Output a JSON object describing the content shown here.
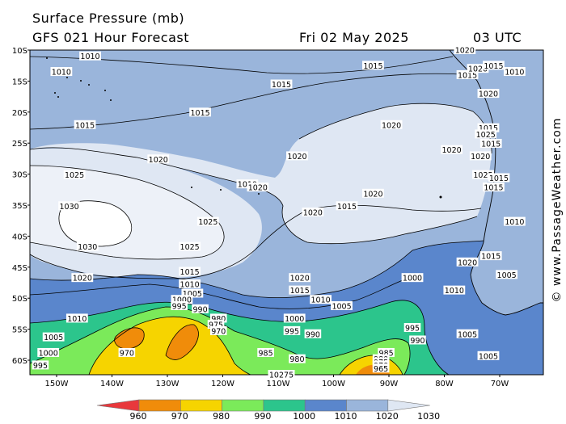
{
  "title_line1": "Surface Pressure (mb)",
  "title_line2": "GFS 021 Hour Forecast",
  "date": "Fri 02 May 2025",
  "time": "03 UTC",
  "credit": "© www.PassageWeather.com",
  "lat_labels": [
    "10S",
    "15S",
    "20S",
    "25S",
    "30S",
    "35S",
    "40S",
    "45S",
    "50S",
    "55S",
    "60S"
  ],
  "lon_labels": [
    "150W",
    "140W",
    "130W",
    "120W",
    "110W",
    "100W",
    "90W",
    "80W",
    "70W"
  ],
  "colorbar": {
    "ticks": [
      "960",
      "970",
      "980",
      "990",
      "1000",
      "1010",
      "1020",
      "1030"
    ],
    "colors": [
      "#e8383c",
      "#f08c0a",
      "#f6d400",
      "#7bea5a",
      "#2cc58c",
      "#5a86cc",
      "#9ab5db",
      "#dfe7f3"
    ]
  },
  "isobar_labels": [
    {
      "text": "1010",
      "lon": -147.0,
      "lat": -11.0
    },
    {
      "text": "1010",
      "lon": -152.5,
      "lat": -13.5
    },
    {
      "text": "1015",
      "lon": -110.5,
      "lat": -15.5
    },
    {
      "text": "1015",
      "lon": -93.0,
      "lat": -12.5
    },
    {
      "text": "1015",
      "lon": -126.0,
      "lat": -20.0
    },
    {
      "text": "1015",
      "lon": -148.0,
      "lat": -22.0
    },
    {
      "text": "1020",
      "lon": -89.5,
      "lat": -22.0
    },
    {
      "text": "1020",
      "lon": -134.0,
      "lat": -27.5
    },
    {
      "text": "1020",
      "lon": -107.5,
      "lat": -27.0
    },
    {
      "text": "1020",
      "lon": -78.0,
      "lat": -26.0
    },
    {
      "text": "1025",
      "lon": -150.0,
      "lat": -30.0
    },
    {
      "text": "1030",
      "lon": -151.0,
      "lat": -35.0
    },
    {
      "text": "1030",
      "lon": -147.5,
      "lat": -41.5
    },
    {
      "text": "1025",
      "lon": -124.5,
      "lat": -37.5
    },
    {
      "text": "1025",
      "lon": -128.0,
      "lat": -41.5
    },
    {
      "text": "1020",
      "lon": -93.0,
      "lat": -33.0
    },
    {
      "text": "1020",
      "lon": -104.5,
      "lat": -36.0
    },
    {
      "text": "1015",
      "lon": -98.0,
      "lat": -35.0
    },
    {
      "text": "1015",
      "lon": -128.0,
      "lat": -45.5
    },
    {
      "text": "1020",
      "lon": -107.0,
      "lat": -46.5
    },
    {
      "text": "1020",
      "lon": -148.5,
      "lat": -46.5
    },
    {
      "text": "1015",
      "lon": -107.0,
      "lat": -48.5
    },
    {
      "text": "1010",
      "lon": -128.0,
      "lat": -47.5
    },
    {
      "text": "1010",
      "lon": -103.0,
      "lat": -50.0
    },
    {
      "text": "1005",
      "lon": -127.5,
      "lat": -49.0
    },
    {
      "text": "1005",
      "lon": -99.0,
      "lat": -51.0
    },
    {
      "text": "1010",
      "lon": -149.5,
      "lat": -53.0
    },
    {
      "text": "1000",
      "lon": -129.5,
      "lat": -50.0
    },
    {
      "text": "995",
      "lon": -130.0,
      "lat": -51.0
    },
    {
      "text": "990",
      "lon": -126.0,
      "lat": -51.5
    },
    {
      "text": "1000",
      "lon": -85.5,
      "lat": -46.5
    },
    {
      "text": "995",
      "lon": -85.5,
      "lat": -54.5
    },
    {
      "text": "990",
      "lon": -84.5,
      "lat": -56.5
    },
    {
      "text": "1000",
      "lon": -108.0,
      "lat": -53.0
    },
    {
      "text": "995",
      "lon": -108.5,
      "lat": -55.0
    },
    {
      "text": "990",
      "lon": -104.5,
      "lat": -55.5
    },
    {
      "text": "1005",
      "lon": -154.0,
      "lat": -56.0
    },
    {
      "text": "1000",
      "lon": -155.0,
      "lat": -58.5
    },
    {
      "text": "995",
      "lon": -156.5,
      "lat": -60.5
    },
    {
      "text": "980",
      "lon": -122.5,
      "lat": -53.0
    },
    {
      "text": "975",
      "lon": -123.0,
      "lat": -54.0
    },
    {
      "text": "970",
      "lon": -122.5,
      "lat": -55.0
    },
    {
      "text": "985",
      "lon": -113.5,
      "lat": -58.5
    },
    {
      "text": "980",
      "lon": -107.5,
      "lat": -59.5
    },
    {
      "text": "970",
      "lon": -140.0,
      "lat": -58.5
    },
    {
      "text": "985",
      "lon": -90.5,
      "lat": -58.5
    },
    {
      "text": "980",
      "lon": -91.5,
      "lat": -59.5
    },
    {
      "text": "975",
      "lon": -91.5,
      "lat": -60.0
    },
    {
      "text": "970",
      "lon": -91.5,
      "lat": -60.5
    },
    {
      "text": "965",
      "lon": -91.5,
      "lat": -61.0
    },
    {
      "text": "10275",
      "lon": -110.5,
      "lat": -62.0
    },
    {
      "text": "1005",
      "lon": -75.0,
      "lat": -55.5
    },
    {
      "text": "1005",
      "lon": -71.0,
      "lat": -59.0
    },
    {
      "text": "1005",
      "lon": -67.5,
      "lat": -46.0
    },
    {
      "text": "1010",
      "lon": -77.5,
      "lat": -48.5
    },
    {
      "text": "1020",
      "lon": -75.0,
      "lat": -44.0
    },
    {
      "text": "1015",
      "lon": -70.5,
      "lat": -43.0
    },
    {
      "text": "1015",
      "lon": -70.0,
      "lat": -32.0
    },
    {
      "text": "1025",
      "lon": -72.0,
      "lat": -30.0
    },
    {
      "text": "1020",
      "lon": -71.0,
      "lat": -17.0
    },
    {
      "text": "1015",
      "lon": -71.0,
      "lat": -22.5
    },
    {
      "text": "1015",
      "lon": -75.0,
      "lat": -14.0
    },
    {
      "text": "1020",
      "lon": -73.0,
      "lat": -13.0
    },
    {
      "text": "1020",
      "lon": -75.5,
      "lat": -10.0
    },
    {
      "text": "1010",
      "lon": -66.0,
      "lat": -13.5
    },
    {
      "text": "1015",
      "lon": -70.0,
      "lat": -12.5
    },
    {
      "text": "1010",
      "lon": -66.0,
      "lat": -37.5
    },
    {
      "text": "1025",
      "lon": -71.5,
      "lat": -23.5
    },
    {
      "text": "1015",
      "lon": -70.5,
      "lat": -25.0
    },
    {
      "text": "1010",
      "lon": -117.0,
      "lat": -31.5
    },
    {
      "text": "1020",
      "lon": -115.0,
      "lat": -32.0
    },
    {
      "text": "1015",
      "lon": -69.0,
      "lat": -30.5
    },
    {
      "text": "1020",
      "lon": -72.5,
      "lat": -27.0
    }
  ]
}
